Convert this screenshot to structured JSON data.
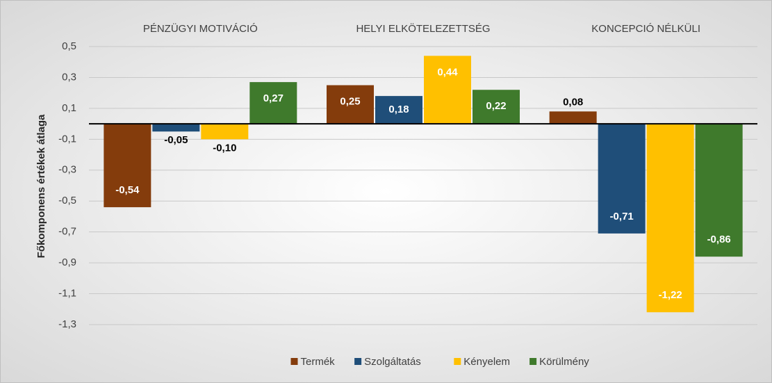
{
  "chart_data": {
    "type": "bar",
    "categories": [
      "PÉNZÜGYI MOTIVÁCIÓ",
      "HELYI ELKÖTELEZETTSÉG",
      "KONCEPCIÓ NÉLKÜLI"
    ],
    "y_label": "Főkomponens értékek átlaga",
    "series": [
      {
        "name": "Termék",
        "color": "#843c0c",
        "values": [
          -0.54,
          0.25,
          0.08
        ],
        "value_labels": [
          "-0,54",
          "0,25",
          "0,08"
        ]
      },
      {
        "name": "Szolgáltatás",
        "color": "#1f4e79",
        "values": [
          -0.05,
          0.18,
          -0.71
        ],
        "value_labels": [
          "-0,05",
          "0,18",
          "-0,71"
        ]
      },
      {
        "name": "Kényelem",
        "color": "#ffc000",
        "values": [
          -0.1,
          0.44,
          -1.22
        ],
        "value_labels": [
          "-0,10",
          "0,44",
          "-1,22"
        ]
      },
      {
        "name": "Körülmény",
        "color": "#3f7a2c",
        "values": [
          0.27,
          0.22,
          -0.86
        ],
        "value_labels": [
          "0,27",
          "0,22",
          "-0,86"
        ]
      }
    ],
    "ylim": [
      -1.3,
      0.5
    ],
    "yticks": [
      {
        "value": 0.5,
        "label": "0,5"
      },
      {
        "value": 0.3,
        "label": "0,3"
      },
      {
        "value": 0.1,
        "label": "0,1"
      },
      {
        "value": -0.1,
        "label": "-0,1"
      },
      {
        "value": -0.3,
        "label": "-0,3"
      },
      {
        "value": -0.5,
        "label": "-0,5"
      },
      {
        "value": -0.7,
        "label": "-0,7"
      },
      {
        "value": -0.9,
        "label": "-0,9"
      },
      {
        "value": -1.1,
        "label": "-1,1"
      },
      {
        "value": -1.3,
        "label": "-1,3"
      }
    ],
    "grid": true,
    "legend": "bottom"
  }
}
